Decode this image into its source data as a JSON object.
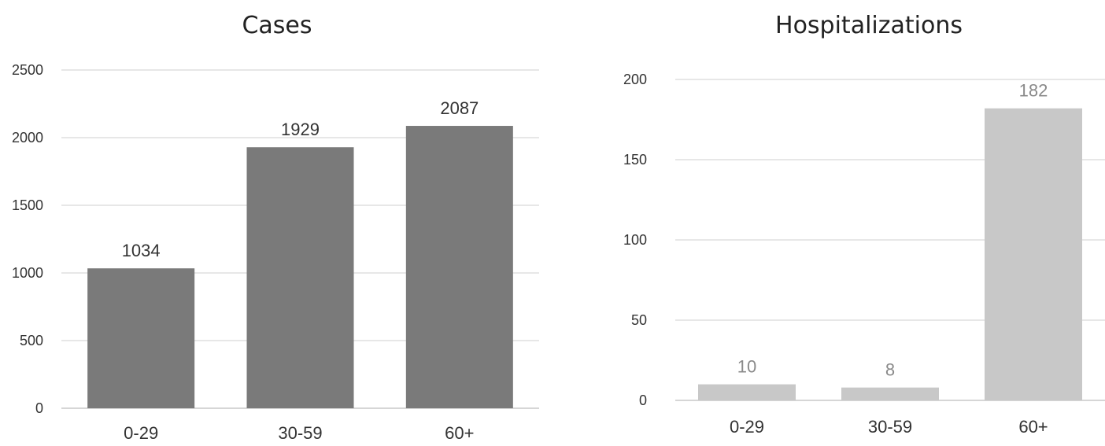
{
  "chart_data": [
    {
      "type": "bar",
      "title": "Cases",
      "categories": [
        "0-29",
        "30-59",
        "60+"
      ],
      "values": [
        1034,
        1929,
        2087
      ],
      "ylim": [
        0,
        2500
      ],
      "yticks": [
        0,
        500,
        1000,
        1500,
        2000,
        2500
      ],
      "grid": true,
      "data_labels": true,
      "bar_color": "#7a7a7a",
      "label_color": "#333333"
    },
    {
      "type": "bar",
      "title": "Hospitalizations",
      "categories": [
        "0-29",
        "30-59",
        "60+"
      ],
      "values": [
        10,
        8,
        182
      ],
      "ylim": [
        0,
        200
      ],
      "yticks": [
        0,
        50,
        100,
        150,
        200
      ],
      "grid": true,
      "data_labels": true,
      "bar_color": "#c8c8c8",
      "label_color": "#8a8a8a"
    }
  ]
}
